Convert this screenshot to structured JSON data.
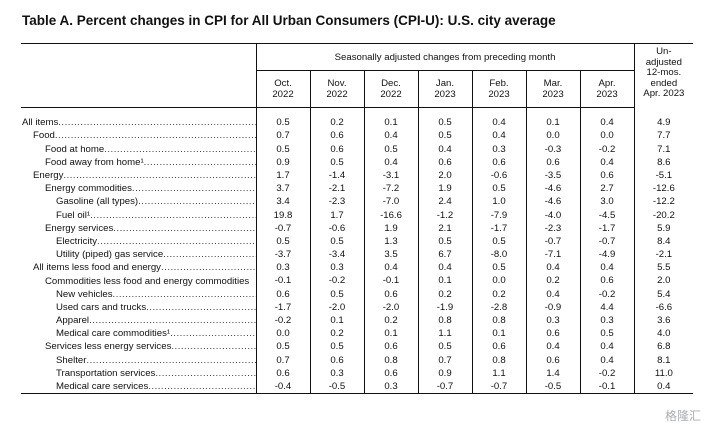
{
  "title": "Table A. Percent changes in CPI for All Urban Consumers (CPI-U): U.S. city average",
  "header": {
    "group_label": "Seasonally adjusted changes from preceding month",
    "unadjusted_label": [
      "Un-",
      "adjusted",
      "12-mos.",
      "ended",
      "Apr. 2023"
    ],
    "months": [
      [
        "Oct.",
        "2022"
      ],
      [
        "Nov.",
        "2022"
      ],
      [
        "Dec.",
        "2022"
      ],
      [
        "Jan.",
        "2023"
      ],
      [
        "Feb.",
        "2023"
      ],
      [
        "Mar.",
        "2023"
      ],
      [
        "Apr.",
        "2023"
      ]
    ]
  },
  "rows": [
    {
      "label": "All items",
      "indent": 0,
      "values": [
        "0.5",
        "0.2",
        "0.1",
        "0.5",
        "0.4",
        "0.1",
        "0.4",
        "4.9"
      ]
    },
    {
      "label": "Food",
      "indent": 1,
      "values": [
        "0.7",
        "0.6",
        "0.4",
        "0.5",
        "0.4",
        "0.0",
        "0.0",
        "7.7"
      ]
    },
    {
      "label": "Food at home",
      "indent": 2,
      "values": [
        "0.5",
        "0.6",
        "0.5",
        "0.4",
        "0.3",
        "-0.3",
        "-0.2",
        "7.1"
      ]
    },
    {
      "label": "Food away from home¹",
      "indent": 2,
      "values": [
        "0.9",
        "0.5",
        "0.4",
        "0.6",
        "0.6",
        "0.6",
        "0.4",
        "8.6"
      ]
    },
    {
      "label": "Energy",
      "indent": 1,
      "values": [
        "1.7",
        "-1.4",
        "-3.1",
        "2.0",
        "-0.6",
        "-3.5",
        "0.6",
        "-5.1"
      ]
    },
    {
      "label": "Energy commodities",
      "indent": 2,
      "values": [
        "3.7",
        "-2.1",
        "-7.2",
        "1.9",
        "0.5",
        "-4.6",
        "2.7",
        "-12.6"
      ]
    },
    {
      "label": "Gasoline (all types)",
      "indent": 3,
      "values": [
        "3.4",
        "-2.3",
        "-7.0",
        "2.4",
        "1.0",
        "-4.6",
        "3.0",
        "-12.2"
      ]
    },
    {
      "label": "Fuel oil¹",
      "indent": 3,
      "values": [
        "19.8",
        "1.7",
        "-16.6",
        "-1.2",
        "-7.9",
        "-4.0",
        "-4.5",
        "-20.2"
      ]
    },
    {
      "label": "Energy services",
      "indent": 2,
      "values": [
        "-0.7",
        "-0.6",
        "1.9",
        "2.1",
        "-1.7",
        "-2.3",
        "-1.7",
        "5.9"
      ]
    },
    {
      "label": "Electricity",
      "indent": 3,
      "values": [
        "0.5",
        "0.5",
        "1.3",
        "0.5",
        "0.5",
        "-0.7",
        "-0.7",
        "8.4"
      ]
    },
    {
      "label": "Utility (piped) gas service",
      "indent": 3,
      "values": [
        "-3.7",
        "-3.4",
        "3.5",
        "6.7",
        "-8.0",
        "-7.1",
        "-4.9",
        "-2.1"
      ]
    },
    {
      "label": "All items less food and energy",
      "indent": 1,
      "values": [
        "0.3",
        "0.3",
        "0.4",
        "0.4",
        "0.5",
        "0.4",
        "0.4",
        "5.5"
      ]
    },
    {
      "label": "Commodities less food and energy commodities",
      "indent": 2,
      "wrap": true,
      "values": [
        "-0.1",
        "-0.2",
        "-0.1",
        "0.1",
        "0.0",
        "0.2",
        "0.6",
        "2.0"
      ]
    },
    {
      "label": "New vehicles",
      "indent": 3,
      "values": [
        "0.6",
        "0.5",
        "0.6",
        "0.2",
        "0.2",
        "0.4",
        "-0.2",
        "5.4"
      ]
    },
    {
      "label": "Used cars and trucks",
      "indent": 3,
      "values": [
        "-1.7",
        "-2.0",
        "-2.0",
        "-1.9",
        "-2.8",
        "-0.9",
        "4.4",
        "-6.6"
      ]
    },
    {
      "label": "Apparel",
      "indent": 3,
      "values": [
        "-0.2",
        "0.1",
        "0.2",
        "0.8",
        "0.8",
        "0.3",
        "0.3",
        "3.6"
      ]
    },
    {
      "label": "Medical care commodities¹",
      "indent": 3,
      "values": [
        "0.0",
        "0.2",
        "0.1",
        "1.1",
        "0.1",
        "0.6",
        "0.5",
        "4.0"
      ]
    },
    {
      "label": "Services less energy services",
      "indent": 2,
      "values": [
        "0.5",
        "0.5",
        "0.6",
        "0.5",
        "0.6",
        "0.4",
        "0.4",
        "6.8"
      ]
    },
    {
      "label": "Shelter",
      "indent": 3,
      "values": [
        "0.7",
        "0.6",
        "0.8",
        "0.7",
        "0.8",
        "0.6",
        "0.4",
        "8.1"
      ]
    },
    {
      "label": "Transportation services",
      "indent": 3,
      "values": [
        "0.6",
        "0.3",
        "0.6",
        "0.9",
        "1.1",
        "1.4",
        "-0.2",
        "11.0"
      ]
    },
    {
      "label": "Medical care services",
      "indent": 3,
      "values": [
        "-0.4",
        "-0.5",
        "0.3",
        "-0.7",
        "-0.7",
        "-0.5",
        "-0.1",
        "0.4"
      ]
    }
  ],
  "watermark": "格隆汇"
}
